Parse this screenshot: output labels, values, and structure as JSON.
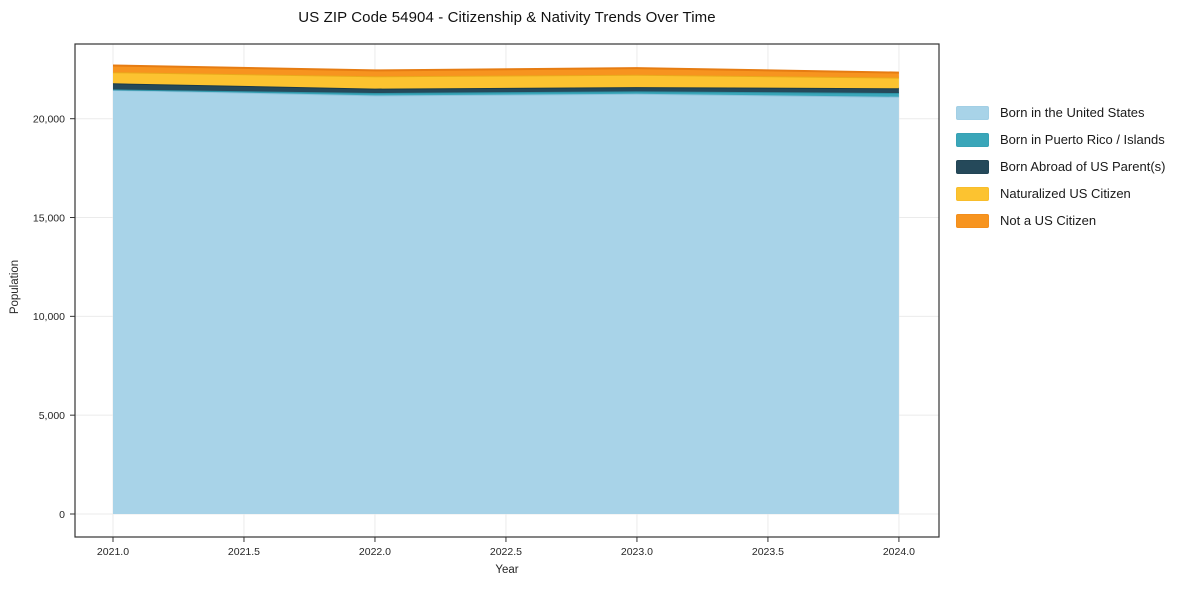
{
  "chart_data": {
    "type": "area",
    "stacked": true,
    "title": "US ZIP Code 54904 - Citizenship & Nativity Trends Over Time",
    "xlabel": "Year",
    "ylabel": "Population",
    "x": [
      2021,
      2022,
      2023,
      2024
    ],
    "series": [
      {
        "name": "Born in the United States",
        "color": "#a8d3e8",
        "line_color": "#8fc3dc",
        "values": [
          21450,
          21180,
          21260,
          21110
        ]
      },
      {
        "name": "Born in Puerto Rico / Islands",
        "color": "#3aa6b9",
        "line_color": "#2e93a6",
        "values": [
          30,
          120,
          120,
          190
        ]
      },
      {
        "name": "Born Abroad of US Parent(s)",
        "color": "#25495a",
        "line_color": "#1b3a49",
        "values": [
          310,
          220,
          220,
          240
        ]
      },
      {
        "name": "Naturalized US Citizen",
        "color": "#fcc330",
        "line_color": "#eaaa1b",
        "values": [
          560,
          625,
          620,
          540
        ]
      },
      {
        "name": "Not a US Citizen",
        "color": "#f7941f",
        "line_color": "#e67c12",
        "values": [
          340,
          300,
          340,
          250
        ]
      }
    ],
    "totals": [
      22690,
      22445,
      22560,
      22330
    ],
    "xticks": {
      "values": [
        2021.0,
        2021.5,
        2022.0,
        2022.5,
        2023.0,
        2023.5,
        2024.0
      ],
      "labels": [
        "2021.0",
        "2021.5",
        "2022.0",
        "2022.5",
        "2023.0",
        "2023.5",
        "2024.0"
      ]
    },
    "yticks": {
      "values": [
        0,
        5000,
        10000,
        15000,
        20000
      ],
      "labels": [
        "0",
        "5,000",
        "10,000",
        "15,000",
        "20,000"
      ]
    },
    "xlim": [
      2020.855,
      2024.153
    ],
    "ylim": [
      -1164,
      23779
    ],
    "grid": true,
    "legend_position": "right",
    "colors": {
      "axis_line": "#333333",
      "grid_line": "#ebebeb",
      "tick_text": "#262626",
      "background": "#ffffff"
    }
  }
}
